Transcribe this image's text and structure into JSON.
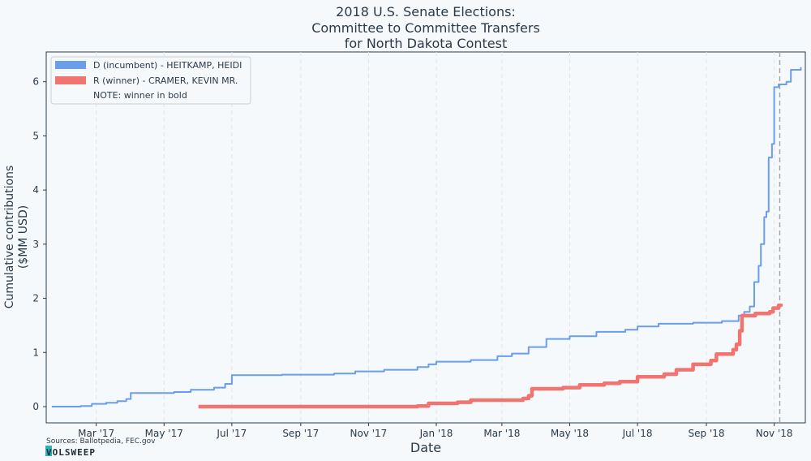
{
  "chart_data": {
    "type": "line",
    "title": [
      "2018 U.S. Senate Elections:",
      "Committee to Committee Transfers",
      "for North Dakota Contest"
    ],
    "xlabel": "Date",
    "ylabel": [
      "Cumulative contributions",
      "($MM USD)"
    ],
    "ylim": [
      -0.3,
      6.55
    ],
    "xlim": [
      "2017-01-15",
      "2018-11-29"
    ],
    "yticks": [
      0,
      1,
      2,
      3,
      4,
      5,
      6
    ],
    "xticks": [
      {
        "date": "2017-03-01",
        "label": "Mar '17"
      },
      {
        "date": "2017-05-01",
        "label": "May '17"
      },
      {
        "date": "2017-07-01",
        "label": "Jul '17"
      },
      {
        "date": "2017-09-01",
        "label": "Sep '17"
      },
      {
        "date": "2017-11-01",
        "label": "Nov '17"
      },
      {
        "date": "2018-01-01",
        "label": "Jan '18"
      },
      {
        "date": "2018-03-01",
        "label": "Mar '18"
      },
      {
        "date": "2018-05-01",
        "label": "May '18"
      },
      {
        "date": "2018-07-01",
        "label": "Jul '18"
      },
      {
        "date": "2018-09-01",
        "label": "Sep '18"
      },
      {
        "date": "2018-11-01",
        "label": "Nov '18"
      }
    ],
    "grid": "vertical",
    "legend_position": "top-left",
    "legend_note": "NOTE: winner in bold",
    "election_marker_date": "2018-11-06",
    "series": [
      {
        "name": "D (incumbent) - HEITKAMP, HEIDI",
        "color": "#6b9ded",
        "bold": false,
        "points": [
          [
            "2017-01-20",
            0.0
          ],
          [
            "2017-02-15",
            0.01
          ],
          [
            "2017-02-25",
            0.05
          ],
          [
            "2017-03-10",
            0.07
          ],
          [
            "2017-03-20",
            0.1
          ],
          [
            "2017-03-28",
            0.14
          ],
          [
            "2017-04-01",
            0.25
          ],
          [
            "2017-04-20",
            0.25
          ],
          [
            "2017-05-10",
            0.27
          ],
          [
            "2017-05-25",
            0.31
          ],
          [
            "2017-06-15",
            0.35
          ],
          [
            "2017-06-25",
            0.42
          ],
          [
            "2017-07-01",
            0.58
          ],
          [
            "2017-08-15",
            0.59
          ],
          [
            "2017-10-01",
            0.61
          ],
          [
            "2017-10-20",
            0.65
          ],
          [
            "2017-11-15",
            0.68
          ],
          [
            "2017-12-15",
            0.73
          ],
          [
            "2017-12-25",
            0.78
          ],
          [
            "2018-01-01",
            0.83
          ],
          [
            "2018-02-01",
            0.86
          ],
          [
            "2018-02-25",
            0.93
          ],
          [
            "2018-03-10",
            0.98
          ],
          [
            "2018-03-25",
            1.1
          ],
          [
            "2018-04-10",
            1.25
          ],
          [
            "2018-05-01",
            1.3
          ],
          [
            "2018-05-25",
            1.38
          ],
          [
            "2018-06-20",
            1.42
          ],
          [
            "2018-07-01",
            1.48
          ],
          [
            "2018-07-20",
            1.53
          ],
          [
            "2018-08-20",
            1.55
          ],
          [
            "2018-09-15",
            1.58
          ],
          [
            "2018-09-30",
            1.68
          ],
          [
            "2018-10-05",
            1.75
          ],
          [
            "2018-10-10",
            1.85
          ],
          [
            "2018-10-14",
            2.3
          ],
          [
            "2018-10-18",
            2.6
          ],
          [
            "2018-10-20",
            3.0
          ],
          [
            "2018-10-23",
            3.5
          ],
          [
            "2018-10-25",
            3.6
          ],
          [
            "2018-10-27",
            4.6
          ],
          [
            "2018-10-30",
            4.85
          ],
          [
            "2018-11-01",
            5.9
          ],
          [
            "2018-11-05",
            5.95
          ],
          [
            "2018-11-12",
            6.0
          ],
          [
            "2018-11-16",
            6.22
          ],
          [
            "2018-11-25",
            6.27
          ]
        ]
      },
      {
        "name": "R (winner) - CRAMER, KEVIN MR.",
        "color": "#f07470",
        "bold": true,
        "points": [
          [
            "2017-06-01",
            0.0
          ],
          [
            "2017-12-15",
            0.01
          ],
          [
            "2017-12-25",
            0.06
          ],
          [
            "2018-01-20",
            0.08
          ],
          [
            "2018-02-01",
            0.12
          ],
          [
            "2018-03-20",
            0.15
          ],
          [
            "2018-03-25",
            0.2
          ],
          [
            "2018-03-28",
            0.33
          ],
          [
            "2018-04-25",
            0.35
          ],
          [
            "2018-05-10",
            0.4
          ],
          [
            "2018-06-01",
            0.43
          ],
          [
            "2018-06-15",
            0.46
          ],
          [
            "2018-07-01",
            0.55
          ],
          [
            "2018-07-25",
            0.6
          ],
          [
            "2018-08-05",
            0.68
          ],
          [
            "2018-08-20",
            0.78
          ],
          [
            "2018-09-05",
            0.85
          ],
          [
            "2018-09-10",
            0.97
          ],
          [
            "2018-09-25",
            1.05
          ],
          [
            "2018-09-28",
            1.15
          ],
          [
            "2018-10-01",
            1.4
          ],
          [
            "2018-10-03",
            1.68
          ],
          [
            "2018-10-15",
            1.72
          ],
          [
            "2018-10-28",
            1.75
          ],
          [
            "2018-10-31",
            1.82
          ],
          [
            "2018-11-05",
            1.87
          ],
          [
            "2018-11-07",
            1.9
          ]
        ]
      }
    ]
  },
  "source_note": "Sources: Ballotpedia, FEC.gov",
  "logo": "VOLSWEEP"
}
